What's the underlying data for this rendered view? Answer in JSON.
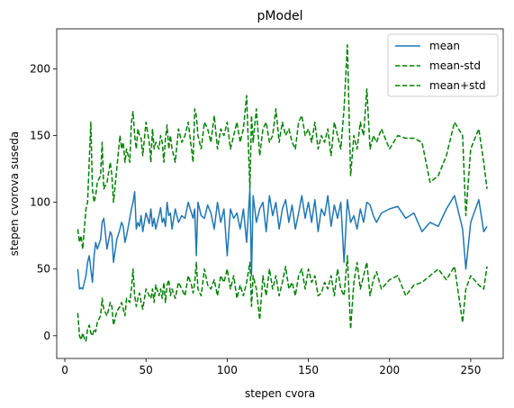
{
  "chart_data": {
    "type": "line",
    "title": "pModel",
    "xlabel": "stepen cvora",
    "ylabel": "stepen cvorova suseda",
    "xlim": [
      -5,
      270
    ],
    "ylim": [
      -17,
      230
    ],
    "x_ticks": [
      0,
      50,
      100,
      150,
      200,
      250
    ],
    "y_ticks": [
      0,
      50,
      100,
      150,
      200
    ],
    "grid": false,
    "legend_position": "top-right",
    "series": [
      {
        "name": "mean",
        "color": "#1f77b4",
        "dash": "solid",
        "x": [
          8,
          9,
          10,
          11,
          12,
          13,
          14,
          15,
          16,
          17,
          18,
          19,
          20,
          22,
          23,
          24,
          26,
          28,
          29,
          30,
          32,
          34,
          35,
          36,
          37,
          38,
          40,
          41,
          42,
          43,
          44,
          45,
          46,
          47,
          48,
          50,
          52,
          53,
          54,
          55,
          56,
          58,
          59,
          60,
          61,
          62,
          63,
          64,
          65,
          66,
          68,
          70,
          72,
          74,
          76,
          78,
          79,
          80,
          81,
          82,
          84,
          86,
          88,
          90,
          92,
          94,
          96,
          98,
          100,
          102,
          104,
          106,
          108,
          110,
          112,
          114,
          115,
          116,
          118,
          120,
          122,
          124,
          126,
          128,
          130,
          132,
          134,
          136,
          138,
          140,
          142,
          144,
          146,
          148,
          150,
          152,
          154,
          156,
          158,
          160,
          162,
          164,
          166,
          168,
          170,
          172,
          174,
          176,
          178,
          180,
          182,
          184,
          186,
          188,
          190,
          192,
          195,
          200,
          205,
          210,
          215,
          220,
          225,
          230,
          235,
          240,
          245,
          247,
          250,
          255,
          258,
          260
        ],
        "y": [
          50,
          35,
          36,
          35,
          40,
          45,
          55,
          60,
          50,
          40,
          60,
          70,
          65,
          72,
          85,
          88,
          65,
          78,
          75,
          55,
          72,
          80,
          85,
          82,
          70,
          75,
          88,
          95,
          100,
          108,
          80,
          85,
          82,
          90,
          78,
          92,
          84,
          95,
          82,
          88,
          80,
          90,
          96,
          85,
          88,
          82,
          100,
          90,
          92,
          80,
          95,
          85,
          90,
          88,
          100,
          92,
          88,
          95,
          60,
          100,
          90,
          88,
          98,
          92,
          80,
          100,
          85,
          95,
          60,
          95,
          88,
          92,
          80,
          95,
          70,
          110,
          45,
          105,
          85,
          95,
          100,
          78,
          105,
          90,
          100,
          80,
          95,
          102,
          85,
          98,
          80,
          92,
          105,
          88,
          100,
          85,
          102,
          78,
          95,
          90,
          105,
          82,
          98,
          88,
          100,
          55,
          102,
          85,
          90,
          80,
          95,
          85,
          100,
          98,
          90,
          85,
          92,
          95,
          97,
          88,
          92,
          78,
          85,
          82,
          95,
          105,
          80,
          50,
          85,
          102,
          78,
          82
        ]
      },
      {
        "name": "mean-std",
        "color": "#008000",
        "dash": "dashed",
        "x": [
          8,
          9,
          10,
          11,
          12,
          13,
          14,
          15,
          16,
          17,
          18,
          19,
          20,
          22,
          23,
          24,
          26,
          28,
          29,
          30,
          32,
          34,
          35,
          36,
          37,
          38,
          40,
          41,
          42,
          43,
          44,
          45,
          46,
          47,
          48,
          50,
          52,
          53,
          54,
          55,
          56,
          58,
          59,
          60,
          61,
          62,
          63,
          64,
          65,
          66,
          68,
          70,
          72,
          74,
          76,
          78,
          79,
          80,
          81,
          82,
          84,
          86,
          88,
          90,
          92,
          94,
          96,
          98,
          100,
          102,
          104,
          106,
          108,
          110,
          112,
          114,
          115,
          116,
          118,
          120,
          122,
          124,
          126,
          128,
          130,
          132,
          134,
          136,
          138,
          140,
          142,
          144,
          146,
          148,
          150,
          152,
          154,
          156,
          158,
          160,
          162,
          164,
          166,
          168,
          170,
          172,
          174,
          176,
          178,
          180,
          182,
          184,
          186,
          188,
          190,
          192,
          195,
          200,
          205,
          210,
          215,
          220,
          225,
          230,
          235,
          240,
          245,
          247,
          250,
          255,
          258,
          260
        ],
        "y": [
          17,
          0,
          -3,
          2,
          -2,
          -4,
          5,
          8,
          2,
          0,
          5,
          3,
          10,
          15,
          28,
          20,
          15,
          25,
          22,
          8,
          18,
          22,
          25,
          20,
          15,
          28,
          25,
          35,
          50,
          30,
          22,
          28,
          32,
          25,
          20,
          35,
          30,
          28,
          35,
          25,
          38,
          30,
          35,
          28,
          40,
          25,
          38,
          42,
          30,
          35,
          28,
          40,
          35,
          30,
          45,
          38,
          32,
          40,
          55,
          35,
          30,
          50,
          38,
          35,
          42,
          30,
          45,
          40,
          50,
          35,
          45,
          28,
          38,
          30,
          40,
          55,
          22,
          45,
          35,
          12,
          45,
          30,
          50,
          35,
          45,
          30,
          40,
          52,
          35,
          40,
          30,
          45,
          50,
          35,
          50,
          40,
          45,
          30,
          32,
          40,
          35,
          45,
          30,
          50,
          35,
          30,
          60,
          5,
          40,
          55,
          35,
          45,
          55,
          30,
          42,
          48,
          35,
          42,
          45,
          30,
          38,
          40,
          45,
          50,
          42,
          52,
          10,
          35,
          45,
          38,
          35,
          52
        ]
      },
      {
        "name": "mean+std",
        "color": "#008000",
        "dash": "dashed",
        "x": [
          8,
          9,
          10,
          11,
          12,
          13,
          14,
          15,
          16,
          17,
          18,
          19,
          20,
          22,
          23,
          24,
          26,
          28,
          29,
          30,
          32,
          34,
          35,
          36,
          37,
          38,
          40,
          41,
          42,
          43,
          44,
          45,
          46,
          47,
          48,
          50,
          52,
          53,
          54,
          55,
          56,
          58,
          59,
          60,
          61,
          62,
          63,
          64,
          65,
          66,
          68,
          70,
          72,
          74,
          76,
          78,
          79,
          80,
          81,
          82,
          84,
          86,
          88,
          90,
          92,
          94,
          96,
          98,
          100,
          102,
          104,
          106,
          108,
          110,
          112,
          114,
          115,
          116,
          118,
          120,
          122,
          124,
          126,
          128,
          130,
          132,
          134,
          136,
          138,
          140,
          142,
          144,
          146,
          148,
          150,
          152,
          154,
          156,
          158,
          160,
          162,
          164,
          166,
          168,
          170,
          172,
          174,
          176,
          178,
          180,
          182,
          184,
          186,
          188,
          190,
          192,
          195,
          200,
          205,
          210,
          215,
          220,
          225,
          230,
          235,
          240,
          245,
          247,
          250,
          255,
          258,
          260
        ],
        "y": [
          80,
          70,
          75,
          65,
          80,
          95,
          100,
          130,
          160,
          110,
          100,
          105,
          115,
          120,
          145,
          110,
          115,
          130,
          120,
          100,
          125,
          150,
          140,
          145,
          130,
          140,
          130,
          160,
          168,
          150,
          140,
          155,
          150,
          148,
          135,
          160,
          145,
          130,
          155,
          140,
          145,
          140,
          150,
          145,
          130,
          148,
          158,
          140,
          150,
          140,
          130,
          155,
          145,
          150,
          160,
          140,
          130,
          170,
          165,
          150,
          140,
          160,
          155,
          145,
          165,
          140,
          155,
          150,
          160,
          140,
          150,
          160,
          145,
          155,
          180,
          110,
          165,
          145,
          170,
          135,
          155,
          160,
          145,
          150,
          170,
          145,
          160,
          150,
          155,
          145,
          140,
          160,
          165,
          150,
          155,
          145,
          160,
          140,
          150,
          145,
          155,
          135,
          160,
          150,
          140,
          170,
          218,
          120,
          150,
          140,
          160,
          150,
          185,
          140,
          150,
          145,
          155,
          140,
          150,
          148,
          148,
          145,
          115,
          120,
          135,
          160,
          150,
          90,
          140,
          155,
          130,
          110
        ]
      }
    ]
  }
}
